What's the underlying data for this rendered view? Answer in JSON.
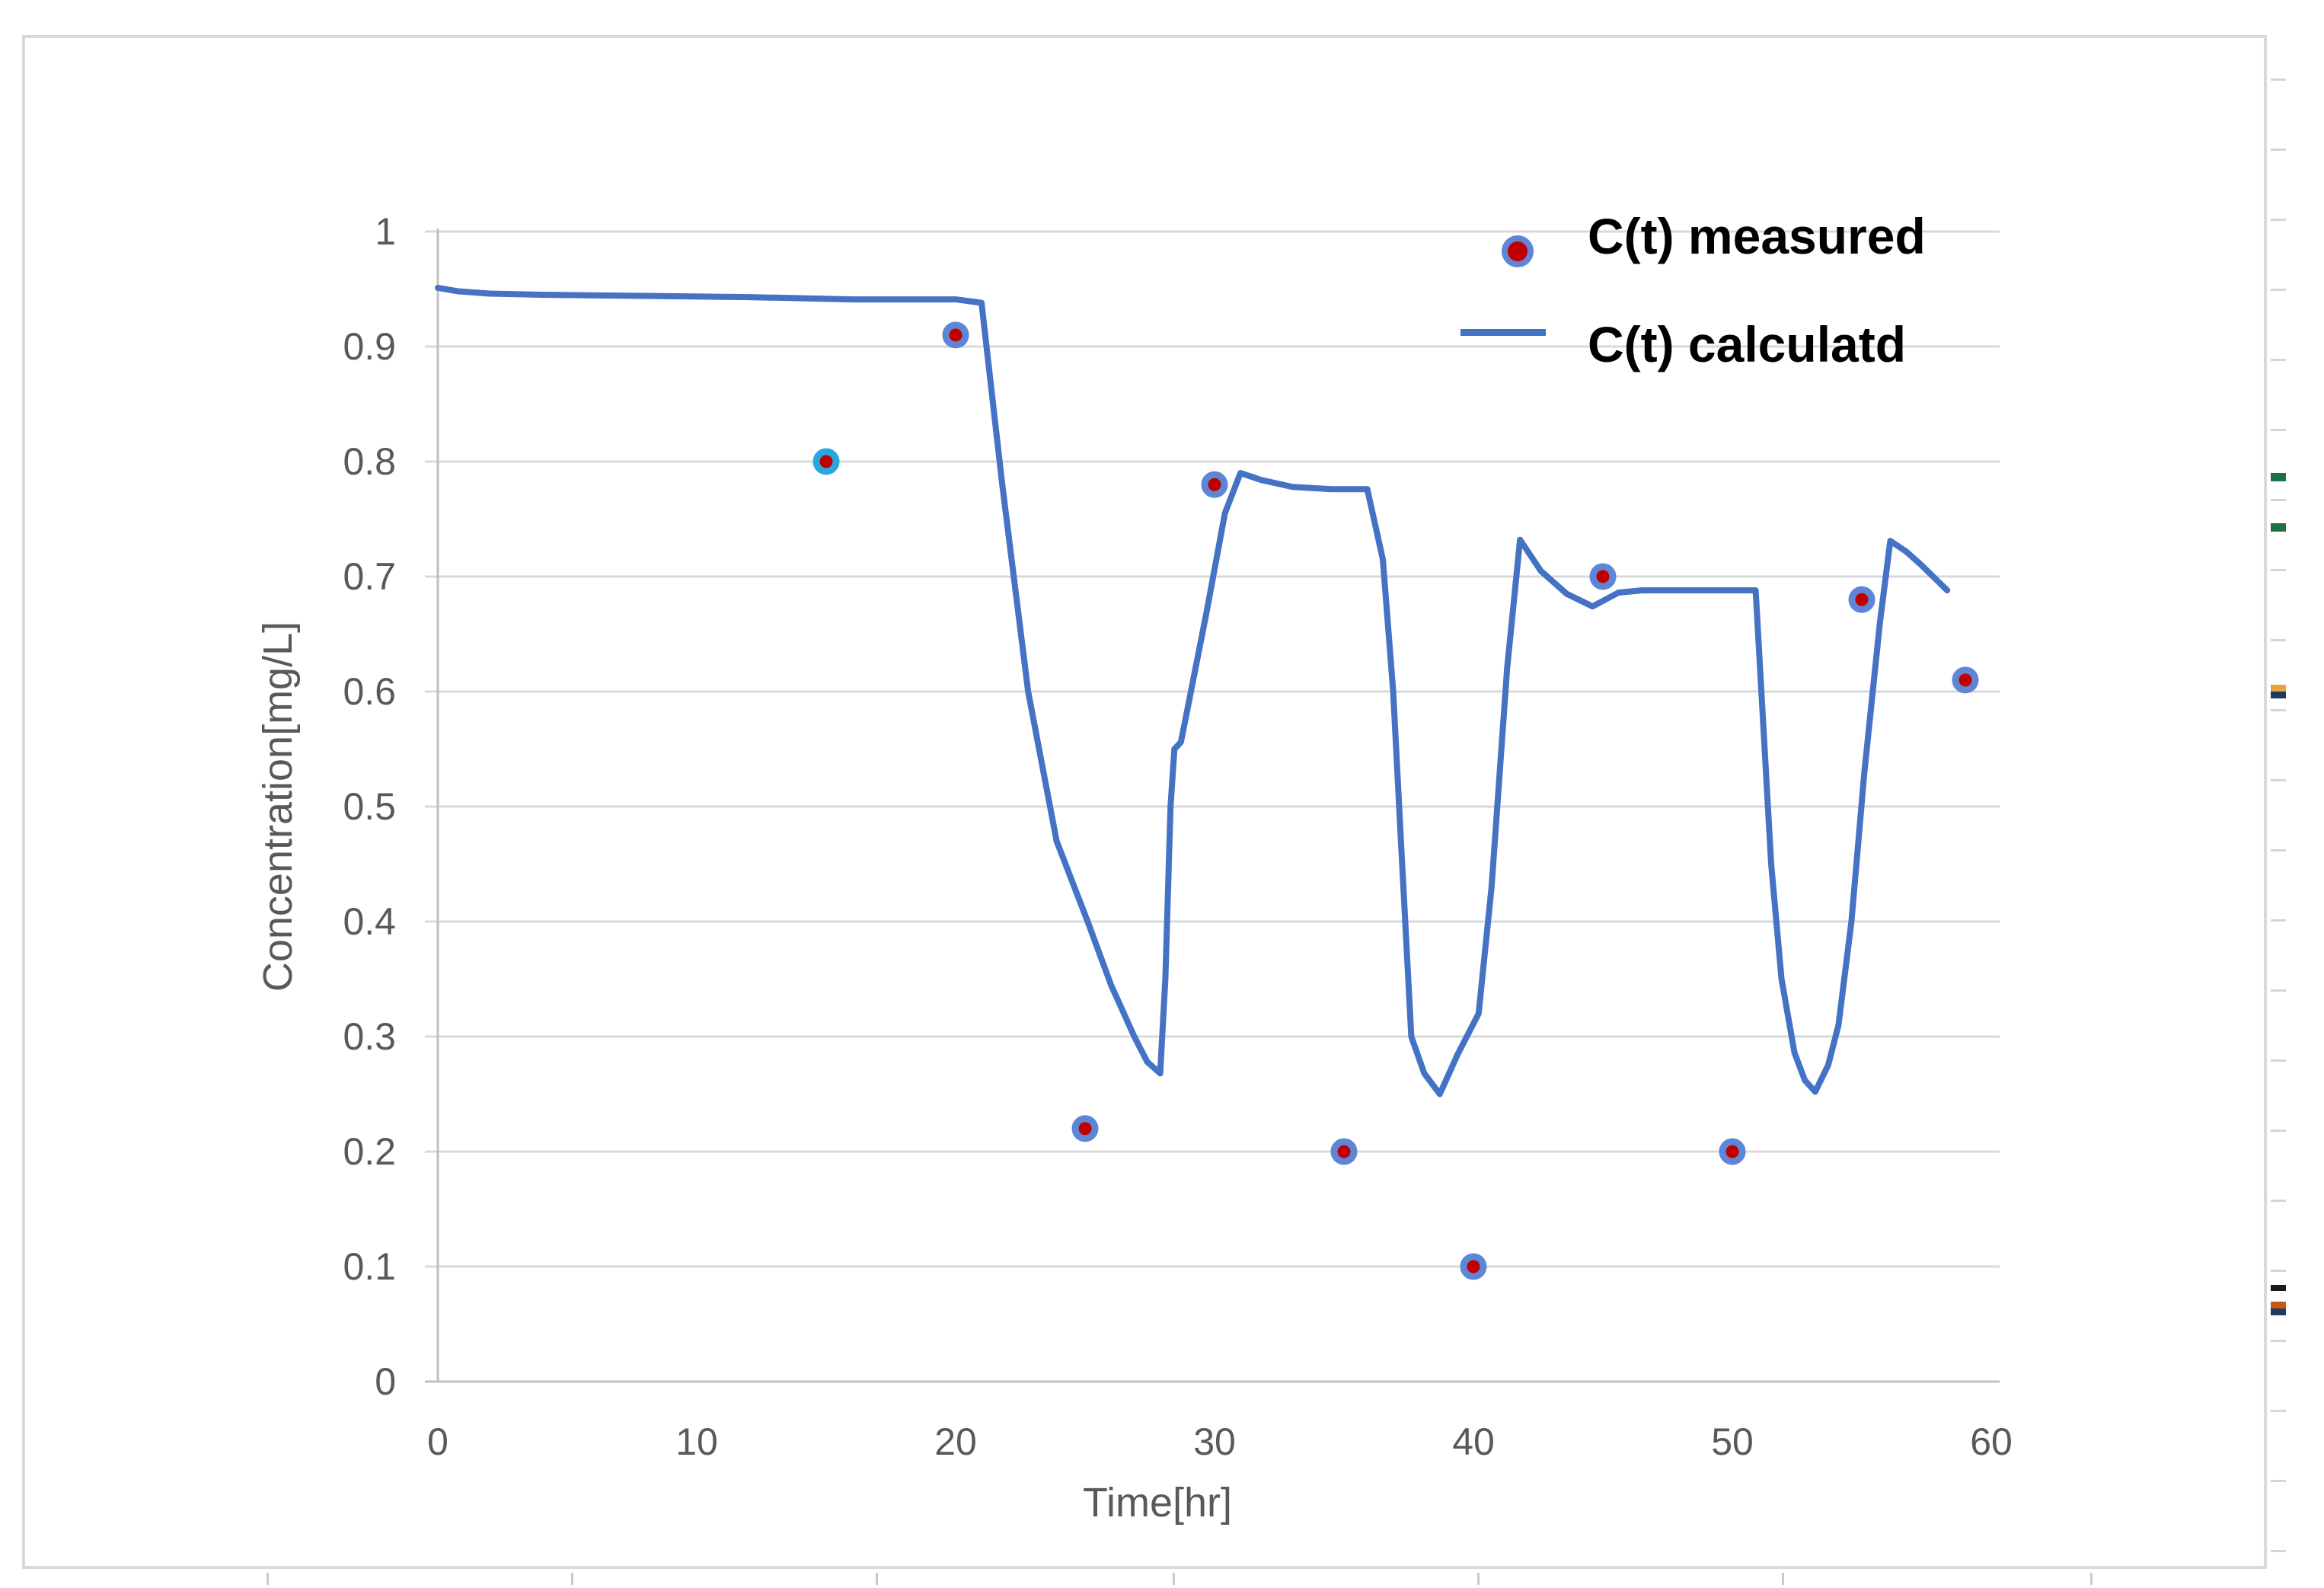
{
  "chart_data": {
    "type": "line",
    "title": "",
    "xlabel": "Time[hr]",
    "ylabel": "Concentration[mg/L]",
    "xlim": [
      0,
      60
    ],
    "ylim": [
      0,
      1
    ],
    "grid": true,
    "legend_position": "inside-top-right",
    "x_tick_values": [
      0,
      10,
      20,
      30,
      40,
      50,
      60
    ],
    "x_tick_labels": [
      "0",
      "10",
      "20",
      "30",
      "40",
      "50",
      "60"
    ],
    "y_tick_values": [
      0,
      0.1,
      0.2,
      0.3,
      0.4,
      0.5,
      0.6,
      0.7,
      0.8,
      0.9,
      1
    ],
    "y_tick_labels": [
      "0",
      "0.1",
      "0.2",
      "0.3",
      "0.4",
      "0.5",
      "0.6",
      "0.7",
      "0.8",
      "0.9",
      "1"
    ],
    "series": [
      {
        "name": "C(t) measured",
        "type": "scatter",
        "marker_fill": "#C00000",
        "marker_ring": "#5E86D5",
        "x": [
          15,
          20,
          25,
          30,
          35,
          40,
          45,
          50,
          55,
          59
        ],
        "y": [
          0.8,
          0.91,
          0.22,
          0.78,
          0.2,
          0.1,
          0.7,
          0.2,
          0.68,
          0.61
        ],
        "ring_overrides": {
          "0": "#29A8E0"
        }
      },
      {
        "name": "C(t) calculatd",
        "type": "line",
        "color": "#4472C4",
        "points": [
          [
            0,
            0.951
          ],
          [
            0.8,
            0.948
          ],
          [
            2,
            0.946
          ],
          [
            4,
            0.945
          ],
          [
            8,
            0.944
          ],
          [
            12,
            0.943
          ],
          [
            16,
            0.941
          ],
          [
            20,
            0.941
          ],
          [
            21,
            0.938
          ],
          [
            21.8,
            0.78
          ],
          [
            22.8,
            0.6
          ],
          [
            23.9,
            0.47
          ],
          [
            25.1,
            0.4
          ],
          [
            26,
            0.345
          ],
          [
            26.9,
            0.3
          ],
          [
            27.4,
            0.278
          ],
          [
            27.9,
            0.268
          ],
          [
            28.1,
            0.35
          ],
          [
            28.3,
            0.5
          ],
          [
            28.45,
            0.55
          ],
          [
            28.7,
            0.556
          ],
          [
            29,
            0.59
          ],
          [
            29.7,
            0.67
          ],
          [
            30.4,
            0.755
          ],
          [
            31,
            0.79
          ],
          [
            31.8,
            0.784
          ],
          [
            33,
            0.778
          ],
          [
            34.5,
            0.776
          ],
          [
            35.9,
            0.776
          ],
          [
            36.5,
            0.715
          ],
          [
            36.9,
            0.6
          ],
          [
            37.2,
            0.47
          ],
          [
            37.6,
            0.3
          ],
          [
            38.1,
            0.268
          ],
          [
            38.7,
            0.25
          ],
          [
            39.4,
            0.285
          ],
          [
            40.2,
            0.32
          ],
          [
            40.7,
            0.43
          ],
          [
            41.3,
            0.62
          ],
          [
            41.8,
            0.732
          ],
          [
            42.6,
            0.705
          ],
          [
            43.6,
            0.685
          ],
          [
            44.6,
            0.674
          ],
          [
            45.6,
            0.686
          ],
          [
            46.5,
            0.688
          ],
          [
            50.9,
            0.688
          ],
          [
            51.5,
            0.45
          ],
          [
            51.9,
            0.35
          ],
          [
            52.4,
            0.286
          ],
          [
            52.8,
            0.262
          ],
          [
            53.2,
            0.252
          ],
          [
            53.7,
            0.275
          ],
          [
            54.1,
            0.31
          ],
          [
            54.6,
            0.4
          ],
          [
            55.1,
            0.53
          ],
          [
            55.7,
            0.66
          ],
          [
            56.1,
            0.731
          ],
          [
            56.7,
            0.722
          ],
          [
            57.3,
            0.71
          ],
          [
            58.3,
            0.688
          ]
        ]
      }
    ]
  },
  "axes": {
    "x_title": "Time[hr]",
    "y_title": "Concentration[mg/L]"
  },
  "legend": {
    "items": [
      {
        "label": "C(t) measured"
      },
      {
        "label": "C(t) calculatd"
      }
    ]
  },
  "colors": {
    "line_blue": "#4472C4",
    "marker_red": "#C00000",
    "marker_ring_blue": "#5E86D5",
    "marker_ring_cyan": "#29A8E0",
    "gridline_grey": "#D9D9D9",
    "axis_grey": "#BFBFBF",
    "tick_text_grey": "#595959",
    "border_grey": "#D9D9D9"
  },
  "artifacts": {
    "right_edge_marks": [
      {
        "y": 621,
        "h": 11,
        "color": "#1E7145"
      },
      {
        "y": 687,
        "h": 11,
        "color": "#1E7145"
      },
      {
        "y": 899,
        "h": 9,
        "color": "#E8A33D"
      },
      {
        "y": 908,
        "h": 9,
        "color": "#1F3864"
      },
      {
        "y": 1687,
        "h": 8,
        "color": "#1A1A1A"
      },
      {
        "y": 1709,
        "h": 9,
        "color": "#C55A11"
      },
      {
        "y": 1718,
        "h": 9,
        "color": "#1F3864"
      }
    ],
    "column_stub_x": [
      350,
      750,
      1150,
      1540,
      1940,
      2340,
      2745
    ],
    "row_stub_start_y": 103,
    "row_stub_step": 92,
    "row_stub_end_y": 2055
  }
}
